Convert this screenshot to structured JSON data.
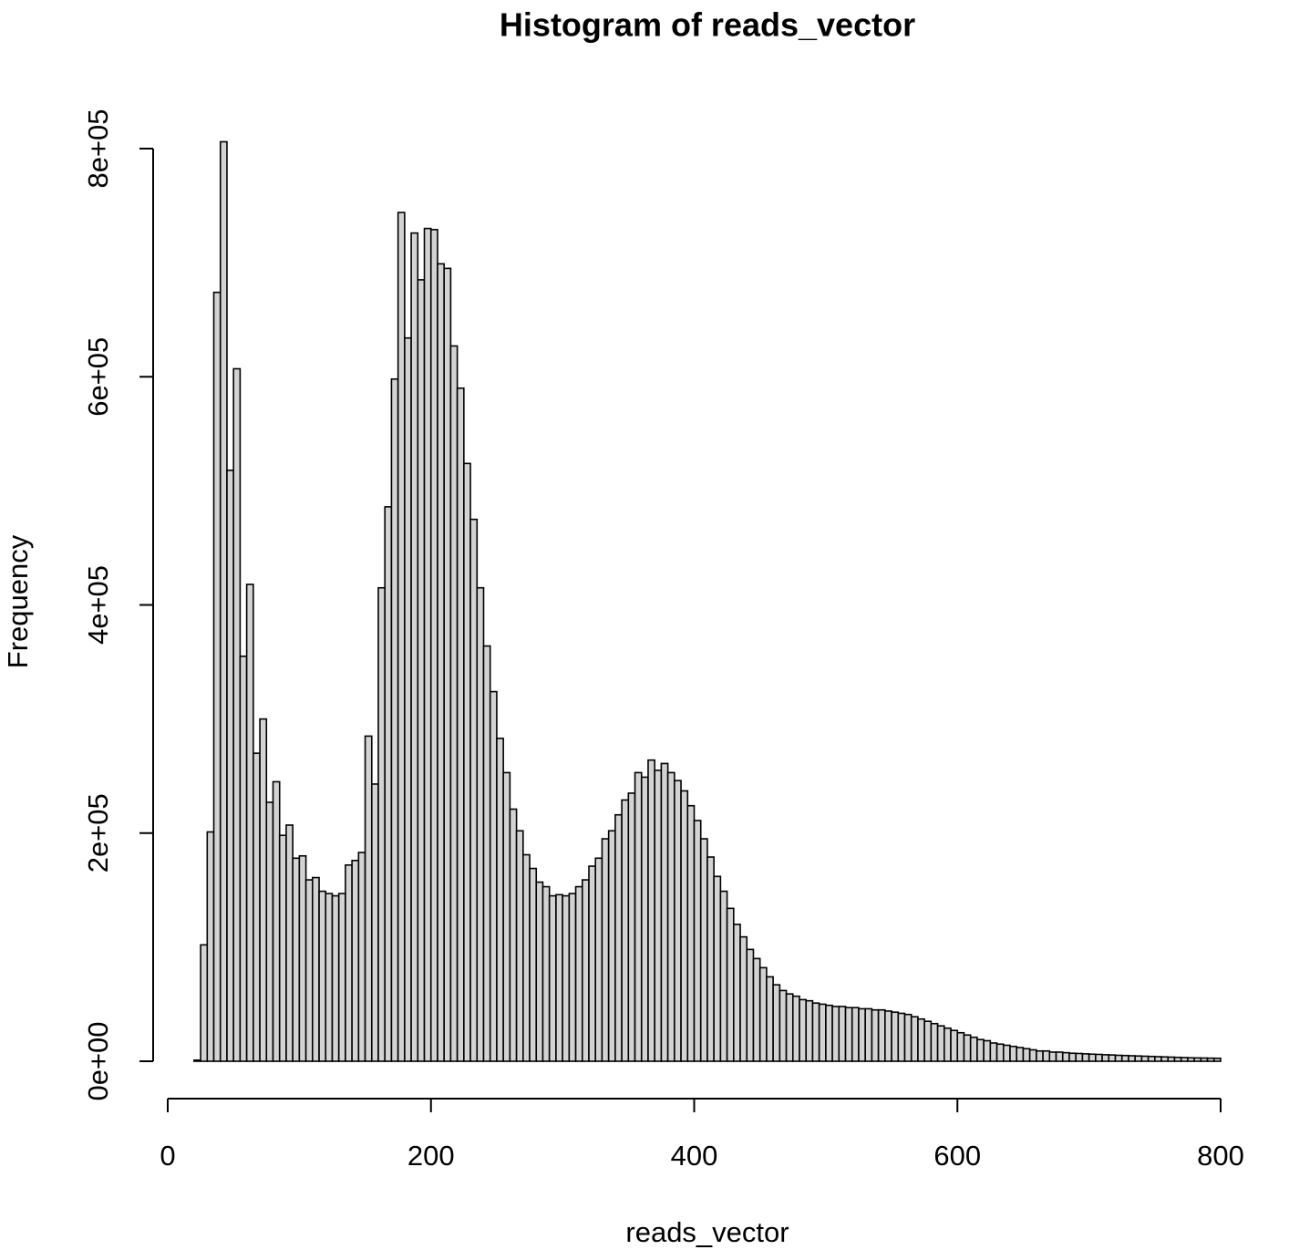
{
  "chart_data": {
    "type": "histogram",
    "title": "Histogram of reads_vector",
    "xlabel": "reads_vector",
    "ylabel": "Frequency",
    "bins": [
      20,
      25,
      30,
      35,
      40,
      45,
      50,
      55,
      60,
      65,
      70,
      75,
      80,
      85,
      90,
      95,
      100,
      105,
      110,
      115,
      120,
      125,
      130,
      135,
      140,
      145,
      150,
      155,
      160,
      165,
      170,
      175,
      180,
      185,
      190,
      195,
      200,
      205,
      210,
      215,
      220,
      225,
      230,
      235,
      240,
      245,
      250,
      255,
      260,
      265,
      270,
      275,
      280,
      285,
      290,
      295,
      300,
      305,
      310,
      315,
      320,
      325,
      330,
      335,
      340,
      345,
      350,
      355,
      360,
      365,
      370,
      375,
      380,
      385,
      390,
      395,
      400,
      405,
      410,
      415,
      420,
      425,
      430,
      435,
      440,
      445,
      450,
      455,
      460,
      465,
      470,
      475,
      480,
      485,
      490,
      495,
      500,
      505,
      510,
      515,
      520,
      525,
      530,
      535,
      540,
      545,
      550,
      555,
      560,
      565,
      570,
      575,
      580,
      585,
      590,
      595,
      600,
      605,
      610,
      615,
      620,
      625,
      630,
      635,
      640,
      645,
      650,
      655,
      660,
      665,
      670,
      675,
      680,
      685,
      690,
      695,
      700,
      705,
      710,
      715,
      720,
      725,
      730,
      735,
      740,
      745,
      750,
      755,
      760,
      765,
      770,
      775,
      780,
      785,
      790,
      795,
      800
    ],
    "counts": [
      1000,
      102000,
      201000,
      674000,
      806000,
      518000,
      607000,
      355000,
      418000,
      270000,
      300000,
      227000,
      245000,
      198000,
      207000,
      178000,
      180000,
      159000,
      161000,
      149000,
      147000,
      145000,
      147000,
      172000,
      176000,
      183000,
      285000,
      243000,
      415000,
      486000,
      598000,
      744000,
      634000,
      726000,
      685000,
      730000,
      729000,
      699000,
      695000,
      627000,
      590000,
      524000,
      475000,
      415000,
      364000,
      324000,
      283000,
      253000,
      221000,
      202000,
      181000,
      169000,
      157000,
      153000,
      145000,
      146000,
      145000,
      147000,
      153000,
      159000,
      171000,
      178000,
      195000,
      202000,
      216000,
      229000,
      235000,
      253000,
      249000,
      264000,
      255000,
      261000,
      253000,
      246000,
      237000,
      224000,
      211000,
      195000,
      179000,
      162000,
      149000,
      134000,
      120000,
      109000,
      98000,
      90000,
      82000,
      74000,
      67000,
      62000,
      59000,
      57000,
      54000,
      53000,
      51000,
      50000,
      49000,
      48000,
      48000,
      47000,
      47000,
      46000,
      46000,
      45000,
      45000,
      44000,
      43000,
      42000,
      41000,
      39000,
      37000,
      35000,
      33000,
      31000,
      29000,
      27000,
      25000,
      23000,
      21000,
      19000,
      18000,
      16000,
      15000,
      14000,
      13000,
      12000,
      11000,
      10000,
      9000,
      9000,
      8000,
      8000,
      7500,
      7000,
      6800,
      6500,
      6200,
      6000,
      5700,
      5500,
      5200,
      5000,
      4800,
      4600,
      4400,
      4200,
      4000,
      3800,
      3600,
      3400,
      3200,
      3000,
      2900,
      2800,
      2700,
      2600
    ],
    "color": "#d3d3d3",
    "xlim": [
      0,
      800
    ],
    "xticks": [
      0,
      200,
      400,
      600,
      800
    ],
    "ylim": [
      0,
      806000
    ],
    "yticks": [
      {
        "value": 0,
        "label": "0e+00"
      },
      {
        "value": 200000,
        "label": "2e+05"
      },
      {
        "value": 400000,
        "label": "4e+05"
      },
      {
        "value": 600000,
        "label": "6e+05"
      },
      {
        "value": 800000,
        "label": "8e+05"
      }
    ]
  }
}
